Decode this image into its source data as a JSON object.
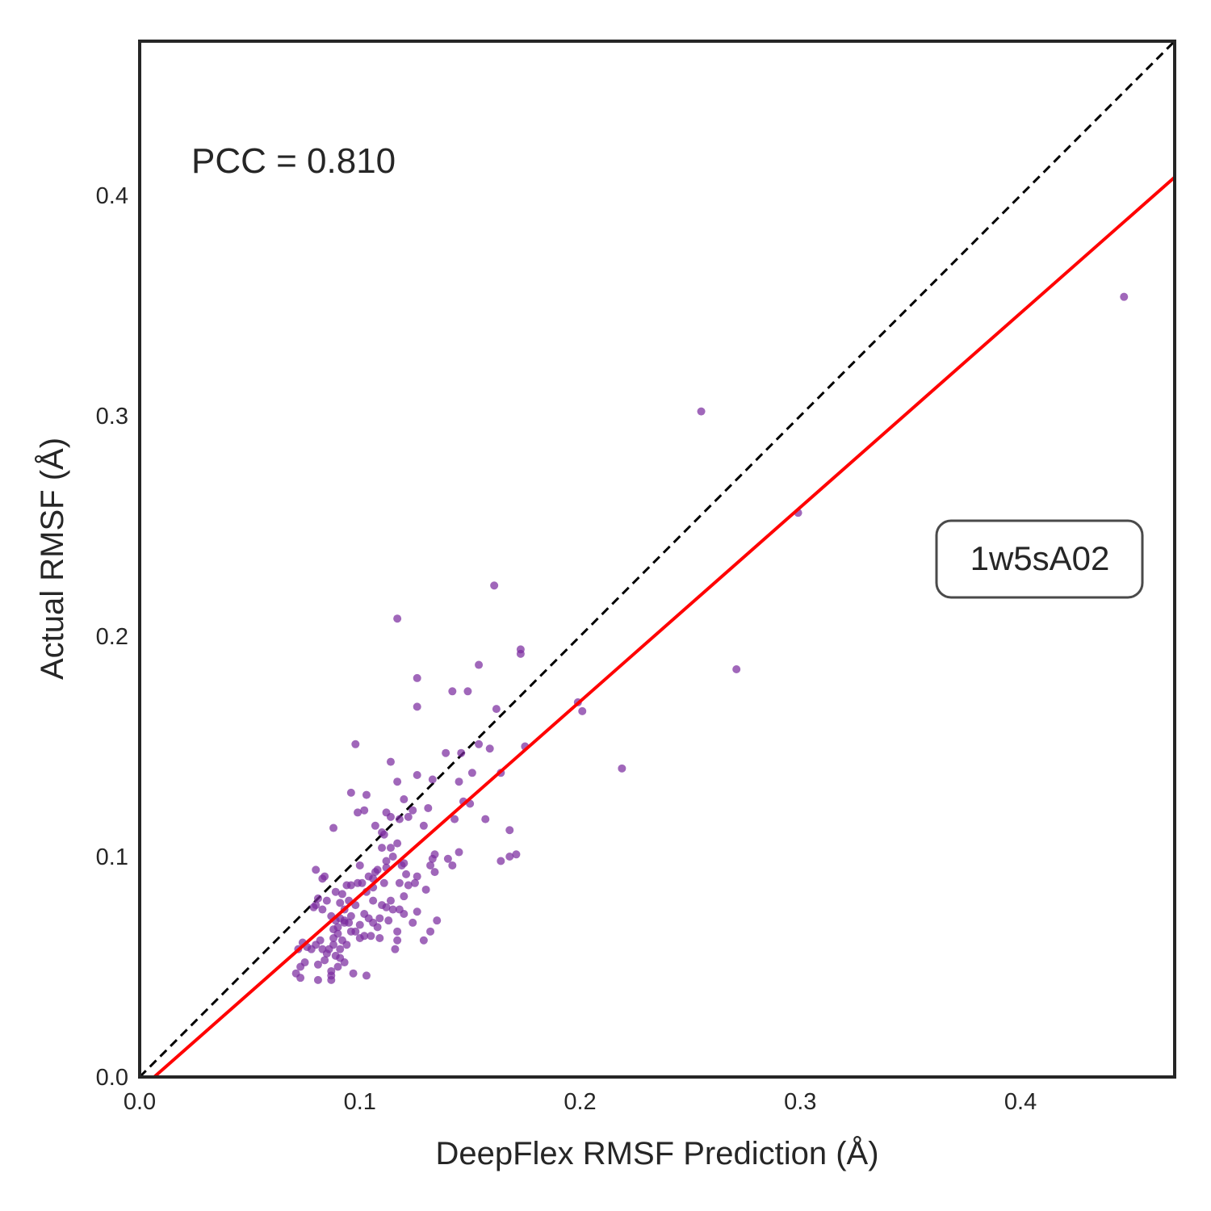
{
  "chart_data": {
    "type": "scatter",
    "xlabel": "DeepFlex RMSF Prediction (Å)",
    "ylabel": "Actual RMSF (Å)",
    "xlim": [
      0,
      0.47
    ],
    "ylim": [
      0,
      0.47
    ],
    "xticks": [
      {
        "value": 0.0,
        "label": "0.0"
      },
      {
        "value": 0.1,
        "label": "0.1"
      },
      {
        "value": 0.2,
        "label": "0.2"
      },
      {
        "value": 0.3,
        "label": "0.3"
      },
      {
        "value": 0.4,
        "label": "0.4"
      }
    ],
    "yticks": [
      {
        "value": 0.0,
        "label": "0.0"
      },
      {
        "value": 0.1,
        "label": "0.1"
      },
      {
        "value": 0.2,
        "label": "0.2"
      },
      {
        "value": 0.3,
        "label": "0.3"
      },
      {
        "value": 0.4,
        "label": "0.4"
      }
    ],
    "grid": false,
    "annotation_pcc": "PCC = 0.810",
    "annotation_label": "1w5sA02",
    "colors": {
      "points": "#7b2ca0",
      "fit_line": "#ff0000",
      "identity_line": "#000000",
      "frame": "#262626"
    },
    "identity_line": {
      "from": [
        0,
        0
      ],
      "to": [
        0.47,
        0.47
      ]
    },
    "fit_line": {
      "slope": 0.881,
      "intercept": -0.0058
    },
    "points": [
      [
        0.447,
        0.354
      ],
      [
        0.255,
        0.302
      ],
      [
        0.299,
        0.256
      ],
      [
        0.271,
        0.185
      ],
      [
        0.219,
        0.14
      ],
      [
        0.201,
        0.166
      ],
      [
        0.199,
        0.17
      ],
      [
        0.161,
        0.223
      ],
      [
        0.173,
        0.194
      ],
      [
        0.173,
        0.192
      ],
      [
        0.154,
        0.187
      ],
      [
        0.162,
        0.167
      ],
      [
        0.175,
        0.15
      ],
      [
        0.164,
        0.138
      ],
      [
        0.168,
        0.112
      ],
      [
        0.171,
        0.101
      ],
      [
        0.168,
        0.1
      ],
      [
        0.164,
        0.098
      ],
      [
        0.117,
        0.208
      ],
      [
        0.126,
        0.181
      ],
      [
        0.126,
        0.168
      ],
      [
        0.142,
        0.175
      ],
      [
        0.149,
        0.175
      ],
      [
        0.154,
        0.151
      ],
      [
        0.159,
        0.149
      ],
      [
        0.139,
        0.147
      ],
      [
        0.146,
        0.147
      ],
      [
        0.151,
        0.138
      ],
      [
        0.145,
        0.134
      ],
      [
        0.147,
        0.125
      ],
      [
        0.15,
        0.124
      ],
      [
        0.157,
        0.117
      ],
      [
        0.143,
        0.117
      ],
      [
        0.145,
        0.102
      ],
      [
        0.14,
        0.099
      ],
      [
        0.142,
        0.096
      ],
      [
        0.133,
        0.135
      ],
      [
        0.126,
        0.137
      ],
      [
        0.117,
        0.134
      ],
      [
        0.12,
        0.126
      ],
      [
        0.131,
        0.122
      ],
      [
        0.124,
        0.121
      ],
      [
        0.129,
        0.114
      ],
      [
        0.122,
        0.118
      ],
      [
        0.118,
        0.117
      ],
      [
        0.112,
        0.12
      ],
      [
        0.114,
        0.118
      ],
      [
        0.107,
        0.114
      ],
      [
        0.11,
        0.111
      ],
      [
        0.111,
        0.11
      ],
      [
        0.117,
        0.106
      ],
      [
        0.114,
        0.104
      ],
      [
        0.115,
        0.1
      ],
      [
        0.112,
        0.098
      ],
      [
        0.11,
        0.104
      ],
      [
        0.119,
        0.096
      ],
      [
        0.134,
        0.101
      ],
      [
        0.133,
        0.099
      ],
      [
        0.132,
        0.096
      ],
      [
        0.134,
        0.093
      ],
      [
        0.126,
        0.091
      ],
      [
        0.125,
        0.088
      ],
      [
        0.13,
        0.085
      ],
      [
        0.122,
        0.087
      ],
      [
        0.118,
        0.088
      ],
      [
        0.12,
        0.082
      ],
      [
        0.111,
        0.088
      ],
      [
        0.114,
        0.08
      ],
      [
        0.112,
        0.077
      ],
      [
        0.115,
        0.076
      ],
      [
        0.118,
        0.076
      ],
      [
        0.11,
        0.078
      ],
      [
        0.113,
        0.071
      ],
      [
        0.106,
        0.09
      ],
      [
        0.108,
        0.094
      ],
      [
        0.106,
        0.086
      ],
      [
        0.103,
        0.084
      ],
      [
        0.101,
        0.088
      ],
      [
        0.099,
        0.088
      ],
      [
        0.096,
        0.087
      ],
      [
        0.094,
        0.087
      ],
      [
        0.092,
        0.083
      ],
      [
        0.095,
        0.08
      ],
      [
        0.098,
        0.078
      ],
      [
        0.102,
        0.074
      ],
      [
        0.104,
        0.072
      ],
      [
        0.106,
        0.07
      ],
      [
        0.109,
        0.072
      ],
      [
        0.108,
        0.068
      ],
      [
        0.105,
        0.064
      ],
      [
        0.102,
        0.064
      ],
      [
        0.1,
        0.069
      ],
      [
        0.098,
        0.066
      ],
      [
        0.096,
        0.066
      ],
      [
        0.095,
        0.07
      ],
      [
        0.093,
        0.07
      ],
      [
        0.091,
        0.072
      ],
      [
        0.089,
        0.071
      ],
      [
        0.088,
        0.067
      ],
      [
        0.09,
        0.065
      ],
      [
        0.092,
        0.062
      ],
      [
        0.094,
        0.06
      ],
      [
        0.091,
        0.058
      ],
      [
        0.088,
        0.06
      ],
      [
        0.086,
        0.058
      ],
      [
        0.089,
        0.055
      ],
      [
        0.091,
        0.054
      ],
      [
        0.093,
        0.052
      ],
      [
        0.09,
        0.05
      ],
      [
        0.087,
        0.048
      ],
      [
        0.085,
        0.056
      ],
      [
        0.083,
        0.058
      ],
      [
        0.082,
        0.062
      ],
      [
        0.08,
        0.06
      ],
      [
        0.078,
        0.058
      ],
      [
        0.076,
        0.059
      ],
      [
        0.074,
        0.061
      ],
      [
        0.072,
        0.058
      ],
      [
        0.075,
        0.052
      ],
      [
        0.073,
        0.05
      ],
      [
        0.071,
        0.047
      ],
      [
        0.073,
        0.045
      ],
      [
        0.081,
        0.044
      ],
      [
        0.087,
        0.044
      ],
      [
        0.087,
        0.046
      ],
      [
        0.097,
        0.047
      ],
      [
        0.103,
        0.046
      ],
      [
        0.081,
        0.051
      ],
      [
        0.084,
        0.053
      ],
      [
        0.088,
        0.063
      ],
      [
        0.09,
        0.068
      ],
      [
        0.083,
        0.076
      ],
      [
        0.08,
        0.078
      ],
      [
        0.085,
        0.08
      ],
      [
        0.081,
        0.081
      ],
      [
        0.079,
        0.077
      ],
      [
        0.083,
        0.09
      ],
      [
        0.08,
        0.094
      ],
      [
        0.084,
        0.091
      ],
      [
        0.089,
        0.084
      ],
      [
        0.091,
        0.079
      ],
      [
        0.093,
        0.076
      ],
      [
        0.093,
        0.071
      ],
      [
        0.087,
        0.073
      ],
      [
        0.096,
        0.073
      ],
      [
        0.1,
        0.063
      ],
      [
        0.109,
        0.063
      ],
      [
        0.116,
        0.058
      ],
      [
        0.117,
        0.062
      ],
      [
        0.117,
        0.066
      ],
      [
        0.124,
        0.07
      ],
      [
        0.12,
        0.074
      ],
      [
        0.126,
        0.075
      ],
      [
        0.129,
        0.062
      ],
      [
        0.132,
        0.066
      ],
      [
        0.135,
        0.071
      ],
      [
        0.12,
        0.097
      ],
      [
        0.121,
        0.092
      ],
      [
        0.112,
        0.095
      ],
      [
        0.107,
        0.093
      ],
      [
        0.104,
        0.091
      ],
      [
        0.1,
        0.096
      ],
      [
        0.088,
        0.113
      ],
      [
        0.099,
        0.12
      ],
      [
        0.102,
        0.121
      ],
      [
        0.103,
        0.128
      ],
      [
        0.096,
        0.129
      ],
      [
        0.098,
        0.151
      ],
      [
        0.114,
        0.143
      ],
      [
        0.106,
        0.08
      ]
    ]
  }
}
